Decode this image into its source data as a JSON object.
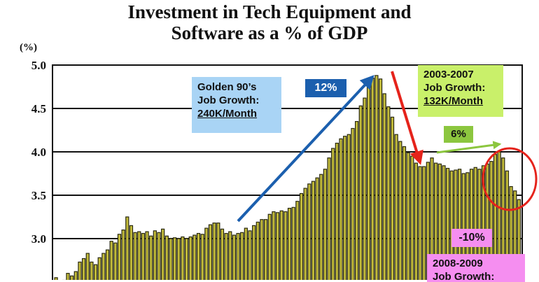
{
  "chart_data": {
    "type": "bar",
    "title": [
      "Investment in Tech Equipment and",
      "Software as a % of GDP"
    ],
    "unit_label": "(%)",
    "y_ticks": [
      "5.0",
      "4.5",
      "4.0",
      "3.5",
      "3.0"
    ],
    "y_tick_values": [
      5.0,
      4.5,
      4.0,
      3.5,
      3.0
    ],
    "ylim": [
      2.5,
      5.0
    ],
    "grid": true,
    "bar_color": "#c4bd3c",
    "values": [
      2.55,
      2.5,
      2.52,
      2.6,
      2.57,
      2.62,
      2.73,
      2.77,
      2.83,
      2.73,
      2.7,
      2.78,
      2.83,
      2.87,
      2.97,
      2.95,
      3.05,
      3.1,
      3.25,
      3.15,
      3.07,
      3.08,
      3.06,
      3.08,
      3.03,
      3.09,
      3.07,
      3.11,
      3.03,
      3.0,
      3.01,
      3.0,
      3.02,
      3.0,
      3.02,
      3.04,
      3.06,
      3.05,
      3.12,
      3.16,
      3.18,
      3.18,
      3.11,
      3.06,
      3.08,
      3.04,
      3.06,
      3.07,
      3.12,
      3.09,
      3.15,
      3.19,
      3.22,
      3.22,
      3.28,
      3.31,
      3.3,
      3.32,
      3.31,
      3.35,
      3.36,
      3.43,
      3.52,
      3.58,
      3.63,
      3.66,
      3.7,
      3.74,
      3.8,
      3.93,
      4.04,
      4.1,
      4.15,
      4.18,
      4.2,
      4.27,
      4.35,
      4.53,
      4.62,
      4.77,
      4.85,
      4.88,
      4.84,
      4.67,
      4.52,
      4.4,
      4.2,
      4.12,
      4.06,
      3.99,
      3.95,
      3.87,
      3.83,
      3.83,
      3.88,
      3.93,
      3.87,
      3.86,
      3.84,
      3.81,
      3.78,
      3.79,
      3.8,
      3.75,
      3.76,
      3.8,
      3.82,
      3.8,
      3.84,
      3.86,
      3.89,
      3.97,
      4.0,
      3.93,
      3.78,
      3.6,
      3.55,
      3.45
    ],
    "annotations": {
      "golden": {
        "lines": [
          "Golden 90’s",
          "Job Growth:"
        ],
        "underlined": "240K/Month"
      },
      "up_pct": "12%",
      "down_pct": "-10%",
      "mid": {
        "lines": [
          "2003-2007",
          "Job Growth:"
        ],
        "underlined": "132K/Month"
      },
      "mid_pct": "6%",
      "recent": {
        "lines": [
          "2008-2009",
          "Job Growth:"
        ]
      }
    },
    "colors": {
      "blue_arrow": "#1b5fae",
      "red_arrow": "#e5231b",
      "green_arrow": "#8cc63f",
      "circle": "#e5231b"
    }
  }
}
